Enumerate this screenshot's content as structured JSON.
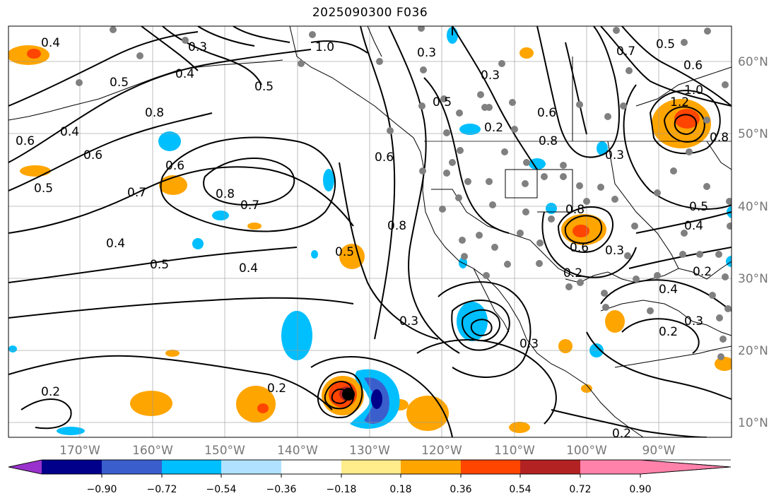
{
  "title": "2025090300 F036",
  "longitude_labels": [
    "170°W",
    "160°W",
    "150°W",
    "140°W",
    "130°W",
    "120°W",
    "110°W",
    "100°W",
    "90°W"
  ],
  "latitude_labels": [
    "60°N",
    "50°N",
    "40°N",
    "30°N",
    "20°N",
    "10°N"
  ],
  "colorbar": {
    "tick_labels": [
      "−0.90",
      "−0.72",
      "−0.54",
      "−0.36",
      "−0.18",
      "0.18",
      "0.36",
      "0.54",
      "0.72",
      "0.90"
    ],
    "colors": [
      "#9932cc",
      "#00008b",
      "#3a5fcd",
      "#00bfff",
      "#b0e2ff",
      "#ffffff",
      "#ffec8b",
      "#ffa500",
      "#ff4500",
      "#b22222",
      "#ff82ab"
    ]
  },
  "contour_labels": [
    {
      "text": "0.4"
    },
    {
      "text": "0.3"
    },
    {
      "text": "0.4"
    },
    {
      "text": "1.0"
    },
    {
      "text": "0.5"
    },
    {
      "text": "0.5"
    },
    {
      "text": "0.8"
    },
    {
      "text": "0.6"
    },
    {
      "text": "0.4"
    },
    {
      "text": "0.6"
    },
    {
      "text": "0.6"
    },
    {
      "text": "0.7"
    },
    {
      "text": "0.8"
    },
    {
      "text": "0.7"
    },
    {
      "text": "0.5"
    },
    {
      "text": "0.4"
    },
    {
      "text": "0.5"
    },
    {
      "text": "0.4"
    },
    {
      "text": "0.6"
    },
    {
      "text": "0.8"
    },
    {
      "text": "0.5"
    },
    {
      "text": "0.3"
    },
    {
      "text": "0.2"
    },
    {
      "text": "0.2"
    },
    {
      "text": "0.3"
    },
    {
      "text": "0.2"
    },
    {
      "text": "0.5"
    },
    {
      "text": "0.6"
    },
    {
      "text": "0.3"
    },
    {
      "text": "0.8"
    },
    {
      "text": "0.7"
    },
    {
      "text": "0.5"
    },
    {
      "text": "0.6"
    },
    {
      "text": "1.0"
    },
    {
      "text": "1.2"
    },
    {
      "text": "0.8"
    },
    {
      "text": "0.5"
    },
    {
      "text": "0.6"
    },
    {
      "text": "0.3"
    },
    {
      "text": "0.2"
    },
    {
      "text": "0.4"
    },
    {
      "text": "0.3"
    },
    {
      "text": "0.2"
    },
    {
      "text": "0.4"
    },
    {
      "text": "0.3"
    },
    {
      "text": "0.2"
    },
    {
      "text": "0.2"
    },
    {
      "text": "0.8"
    },
    {
      "text": "0.3"
    }
  ]
}
